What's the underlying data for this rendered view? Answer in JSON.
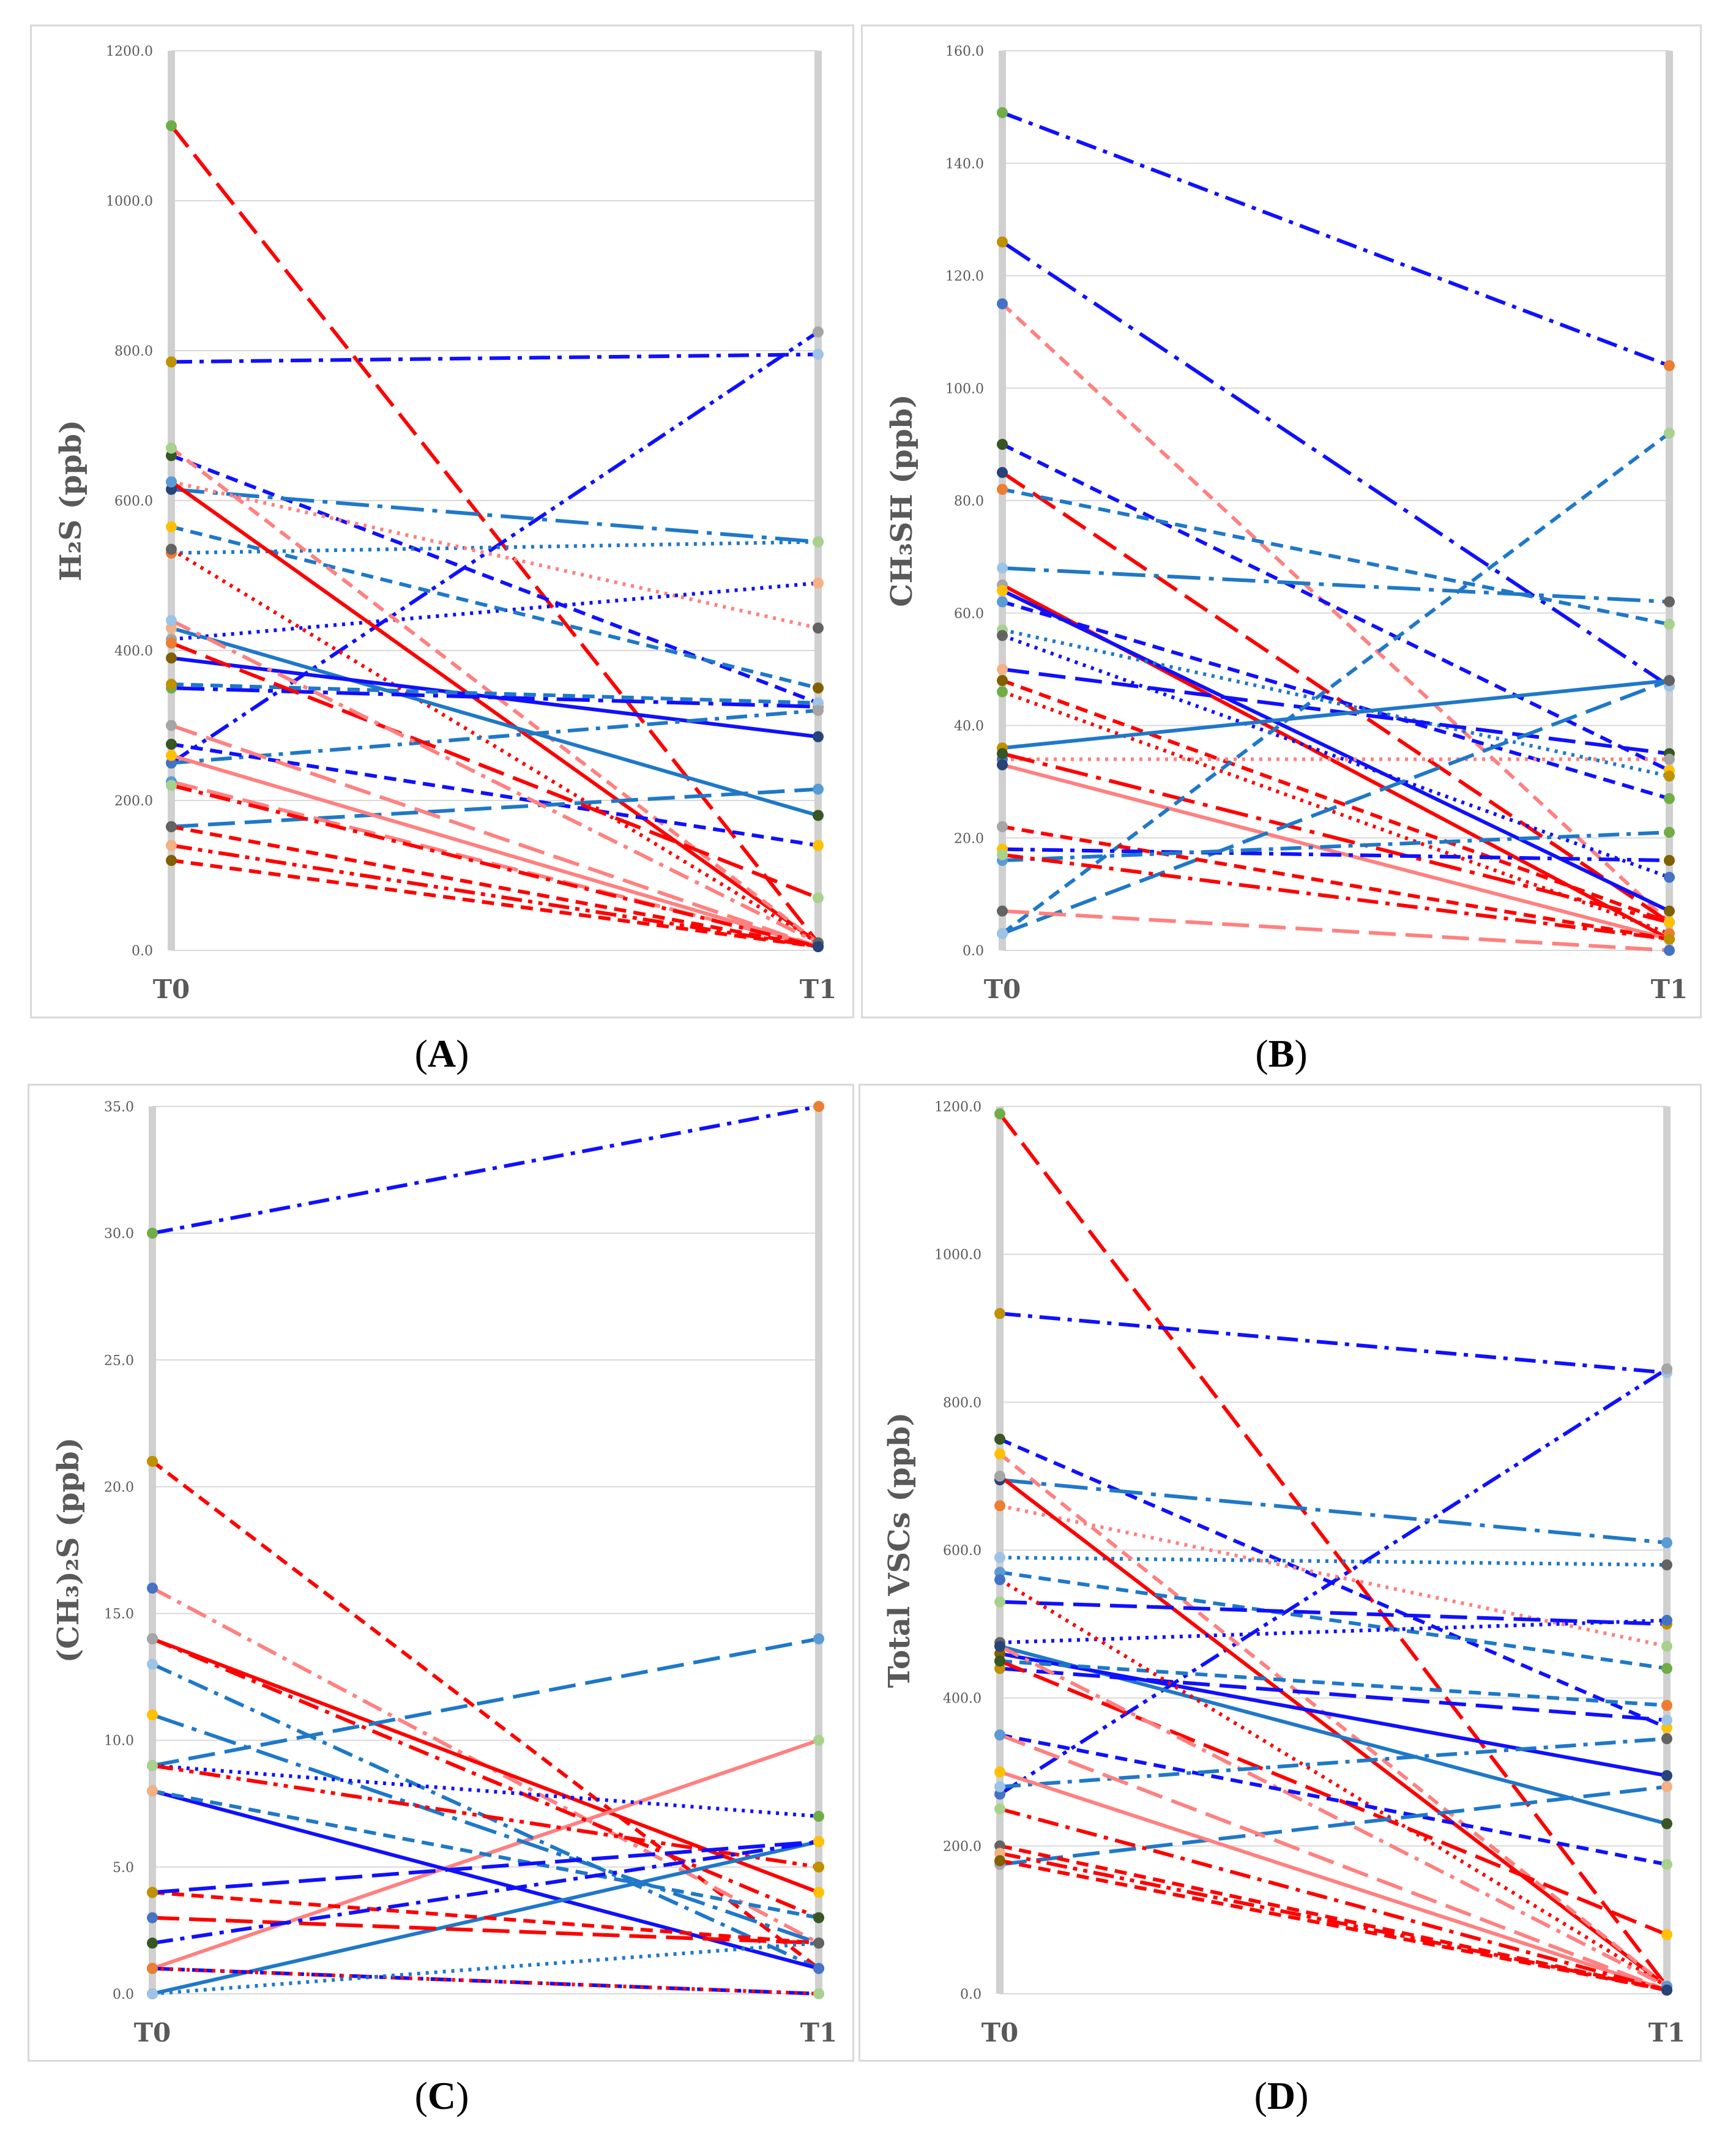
{
  "captions": [
    "A",
    "B",
    "C",
    "D"
  ],
  "x_categories": [
    "T0",
    "T1"
  ],
  "colors": {
    "red": "#ff0000",
    "salmon": "#ff8080",
    "blue": "#1010ff",
    "steel": "#1f78c8",
    "grid": "#d9d9d9",
    "axis": "#d0d0d0",
    "text": "#595959"
  },
  "marker_palette": [
    "#70ad47",
    "#bf9000",
    "#4472c4",
    "#375623",
    "#264478",
    "#ed7d31",
    "#9dc3e6",
    "#a5a5a5",
    "#ffc000",
    "#5b9bd5",
    "#a9d18e",
    "#636363",
    "#f4b183",
    "#806000"
  ],
  "chart_data": [
    {
      "type": "line",
      "title": "",
      "xlabel": "",
      "ylabel": "H₂S (ppb)",
      "ylim": [
        0,
        1200
      ],
      "yticks": [
        "0.0",
        "200.0",
        "400.0",
        "600.0",
        "800.0",
        "1000.0",
        "1200.0"
      ],
      "categories": [
        "T0",
        "T1"
      ],
      "grid": true,
      "series": [
        {
          "c": "red",
          "d": "longdash",
          "v": [
            1100,
            10
          ]
        },
        {
          "c": "blue",
          "d": "dashdot",
          "v": [
            785,
            795
          ]
        },
        {
          "c": "blue",
          "d": "dashdotdot",
          "v": [
            250,
            825
          ]
        },
        {
          "c": "blue",
          "d": "dash",
          "v": [
            660,
            330
          ]
        },
        {
          "c": "steel",
          "d": "longdashdot",
          "v": [
            615,
            545
          ]
        },
        {
          "c": "steel",
          "d": "dotted",
          "v": [
            530,
            545
          ]
        },
        {
          "c": "salmon",
          "d": "dotted",
          "v": [
            625,
            430
          ]
        },
        {
          "c": "blue",
          "d": "dotted",
          "v": [
            415,
            490
          ]
        },
        {
          "c": "steel",
          "d": "dash",
          "v": [
            565,
            350
          ]
        },
        {
          "c": "red",
          "d": "solid",
          "v": [
            625,
            10
          ]
        },
        {
          "c": "salmon",
          "d": "dash",
          "v": [
            670,
            10
          ]
        },
        {
          "c": "red",
          "d": "dotted",
          "v": [
            535,
            10
          ]
        },
        {
          "c": "steel",
          "d": "solid",
          "v": [
            430,
            180
          ]
        },
        {
          "c": "blue",
          "d": "solid",
          "v": [
            390,
            285
          ]
        },
        {
          "c": "blue",
          "d": "longdashdot",
          "v": [
            350,
            325
          ]
        },
        {
          "c": "steel",
          "d": "dash",
          "v": [
            355,
            330
          ]
        },
        {
          "c": "steel",
          "d": "dashdot",
          "v": [
            250,
            320
          ]
        },
        {
          "c": "blue",
          "d": "dash",
          "v": [
            275,
            140
          ]
        },
        {
          "c": "steel",
          "d": "longdash",
          "v": [
            165,
            215
          ]
        },
        {
          "c": "red",
          "d": "longdash",
          "v": [
            410,
            70
          ]
        },
        {
          "c": "salmon",
          "d": "dashdot",
          "v": [
            440,
            10
          ]
        },
        {
          "c": "salmon",
          "d": "longdash",
          "v": [
            300,
            5
          ]
        },
        {
          "c": "salmon",
          "d": "solid",
          "v": [
            260,
            5
          ]
        },
        {
          "c": "salmon",
          "d": "longdash",
          "v": [
            225,
            5
          ]
        },
        {
          "c": "red",
          "d": "dashdot",
          "v": [
            220,
            5
          ]
        },
        {
          "c": "red",
          "d": "dash",
          "v": [
            165,
            5
          ]
        },
        {
          "c": "red",
          "d": "dashdotdot",
          "v": [
            140,
            5
          ]
        },
        {
          "c": "red",
          "d": "dash",
          "v": [
            120,
            5
          ]
        }
      ]
    },
    {
      "type": "line",
      "title": "",
      "xlabel": "",
      "ylabel": "CH₃SH (ppb)",
      "ylim": [
        0,
        160
      ],
      "yticks": [
        "0.0",
        "20.0",
        "40.0",
        "60.0",
        "80.0",
        "100.0",
        "120.0",
        "140.0",
        "160.0"
      ],
      "categories": [
        "T0",
        "T1"
      ],
      "grid": true,
      "series": [
        {
          "c": "blue",
          "d": "dashdot",
          "v": [
            149,
            104
          ]
        },
        {
          "c": "blue",
          "d": "longdashdot",
          "v": [
            126,
            47
          ]
        },
        {
          "c": "salmon",
          "d": "dash",
          "v": [
            115,
            5
          ]
        },
        {
          "c": "blue",
          "d": "dash",
          "v": [
            90,
            32
          ]
        },
        {
          "c": "red",
          "d": "longdash",
          "v": [
            85,
            5
          ]
        },
        {
          "c": "steel",
          "d": "dash",
          "v": [
            82,
            58
          ]
        },
        {
          "c": "steel",
          "d": "longdashdot",
          "v": [
            68,
            62
          ]
        },
        {
          "c": "red",
          "d": "solid",
          "v": [
            65,
            2
          ]
        },
        {
          "c": "blue",
          "d": "solid",
          "v": [
            64,
            7
          ]
        },
        {
          "c": "blue",
          "d": "dash",
          "v": [
            62,
            27
          ]
        },
        {
          "c": "steel",
          "d": "dotted",
          "v": [
            57,
            31
          ]
        },
        {
          "c": "blue",
          "d": "dotted",
          "v": [
            56,
            13
          ]
        },
        {
          "c": "blue",
          "d": "longdash",
          "v": [
            50,
            35
          ]
        },
        {
          "c": "red",
          "d": "dash",
          "v": [
            48,
            5
          ]
        },
        {
          "c": "red",
          "d": "dotted",
          "v": [
            46,
            3
          ]
        },
        {
          "c": "steel",
          "d": "solid",
          "v": [
            36,
            48
          ]
        },
        {
          "c": "salmon",
          "d": "dotted",
          "v": [
            34,
            34
          ]
        },
        {
          "c": "red",
          "d": "longdashdot",
          "v": [
            35,
            5
          ]
        },
        {
          "c": "salmon",
          "d": "solid",
          "v": [
            33,
            2
          ]
        },
        {
          "c": "steel",
          "d": "dash",
          "v": [
            3,
            92
          ]
        },
        {
          "c": "steel",
          "d": "longdash",
          "v": [
            3,
            48
          ]
        },
        {
          "c": "red",
          "d": "dash",
          "v": [
            22,
            2
          ]
        },
        {
          "c": "blue",
          "d": "dashdot",
          "v": [
            18,
            16
          ]
        },
        {
          "c": "steel",
          "d": "dashdot",
          "v": [
            16,
            21
          ]
        },
        {
          "c": "red",
          "d": "dashdot",
          "v": [
            17,
            2
          ]
        },
        {
          "c": "salmon",
          "d": "longdash",
          "v": [
            7,
            0
          ]
        }
      ]
    },
    {
      "type": "line",
      "title": "",
      "xlabel": "",
      "ylabel": "(CH₃)₂S (ppb)",
      "ylim": [
        0,
        35
      ],
      "yticks": [
        "0.0",
        "5.0",
        "10.0",
        "15.0",
        "20.0",
        "25.0",
        "30.0",
        "35.0"
      ],
      "categories": [
        "T0",
        "T1"
      ],
      "grid": true,
      "series": [
        {
          "c": "blue",
          "d": "dashdot",
          "v": [
            30,
            35
          ]
        },
        {
          "c": "red",
          "d": "dash",
          "v": [
            21,
            1
          ]
        },
        {
          "c": "salmon",
          "d": "dashdot",
          "v": [
            16,
            2
          ]
        },
        {
          "c": "red",
          "d": "solid",
          "v": [
            14,
            4
          ]
        },
        {
          "c": "steel",
          "d": "longdash",
          "v": [
            9,
            14
          ]
        },
        {
          "c": "salmon",
          "d": "solid",
          "v": [
            1,
            10
          ]
        },
        {
          "c": "steel",
          "d": "dashdot",
          "v": [
            13,
            1
          ]
        },
        {
          "c": "red",
          "d": "dashdot",
          "v": [
            14,
            3
          ]
        },
        {
          "c": "steel",
          "d": "longdashdot",
          "v": [
            11,
            2
          ]
        },
        {
          "c": "blue",
          "d": "dotted",
          "v": [
            9,
            7
          ]
        },
        {
          "c": "red",
          "d": "dashdotdot",
          "v": [
            9,
            5
          ]
        },
        {
          "c": "blue",
          "d": "solid",
          "v": [
            8,
            1
          ]
        },
        {
          "c": "steel",
          "d": "dash",
          "v": [
            8,
            3
          ]
        },
        {
          "c": "steel",
          "d": "solid",
          "v": [
            0,
            6
          ]
        },
        {
          "c": "red",
          "d": "dash",
          "v": [
            4,
            2
          ]
        },
        {
          "c": "blue",
          "d": "longdash",
          "v": [
            4,
            6
          ]
        },
        {
          "c": "red",
          "d": "longdash",
          "v": [
            3,
            2
          ]
        },
        {
          "c": "blue",
          "d": "dashdot",
          "v": [
            2,
            6
          ]
        },
        {
          "c": "blue",
          "d": "dashdot",
          "v": [
            1,
            0
          ]
        },
        {
          "c": "red",
          "d": "dotted",
          "v": [
            1,
            0
          ]
        },
        {
          "c": "steel",
          "d": "dotted",
          "v": [
            0,
            2
          ]
        }
      ]
    },
    {
      "type": "line",
      "title": "",
      "xlabel": "",
      "ylabel": "Total VSCs (ppb)",
      "ylim": [
        0,
        1200
      ],
      "yticks": [
        "0.0",
        "200.0",
        "400.0",
        "600.0",
        "800.0",
        "1000.0",
        "1200.0"
      ],
      "categories": [
        "T0",
        "T1"
      ],
      "grid": true,
      "series": [
        {
          "c": "red",
          "d": "longdash",
          "v": [
            1190,
            10
          ]
        },
        {
          "c": "blue",
          "d": "dashdot",
          "v": [
            920,
            840
          ]
        },
        {
          "c": "blue",
          "d": "dashdotdot",
          "v": [
            270,
            845
          ]
        },
        {
          "c": "blue",
          "d": "dash",
          "v": [
            750,
            360
          ]
        },
        {
          "c": "steel",
          "d": "longdashdot",
          "v": [
            695,
            610
          ]
        },
        {
          "c": "salmon",
          "d": "dotted",
          "v": [
            660,
            470
          ]
        },
        {
          "c": "steel",
          "d": "dotted",
          "v": [
            590,
            580
          ]
        },
        {
          "c": "red",
          "d": "solid",
          "v": [
            700,
            10
          ]
        },
        {
          "c": "salmon",
          "d": "dash",
          "v": [
            730,
            10
          ]
        },
        {
          "c": "steel",
          "d": "dash",
          "v": [
            570,
            440
          ]
        },
        {
          "c": "blue",
          "d": "longdash",
          "v": [
            530,
            500
          ]
        },
        {
          "c": "blue",
          "d": "dotted",
          "v": [
            475,
            505
          ]
        },
        {
          "c": "steel",
          "d": "solid",
          "v": [
            470,
            230
          ]
        },
        {
          "c": "blue",
          "d": "solid",
          "v": [
            460,
            295
          ]
        },
        {
          "c": "steel",
          "d": "dash",
          "v": [
            450,
            390
          ]
        },
        {
          "c": "blue",
          "d": "longdash",
          "v": [
            440,
            370
          ]
        },
        {
          "c": "red",
          "d": "dotted",
          "v": [
            560,
            10
          ]
        },
        {
          "c": "red",
          "d": "longdash",
          "v": [
            450,
            80
          ]
        },
        {
          "c": "salmon",
          "d": "dashdot",
          "v": [
            470,
            10
          ]
        },
        {
          "c": "blue",
          "d": "dash",
          "v": [
            350,
            175
          ]
        },
        {
          "c": "steel",
          "d": "dashdot",
          "v": [
            280,
            345
          ]
        },
        {
          "c": "steel",
          "d": "longdash",
          "v": [
            175,
            280
          ]
        },
        {
          "c": "salmon",
          "d": "solid",
          "v": [
            300,
            5
          ]
        },
        {
          "c": "salmon",
          "d": "longdash",
          "v": [
            350,
            5
          ]
        },
        {
          "c": "red",
          "d": "dashdot",
          "v": [
            250,
            5
          ]
        },
        {
          "c": "red",
          "d": "dash",
          "v": [
            200,
            5
          ]
        },
        {
          "c": "red",
          "d": "dashdotdot",
          "v": [
            190,
            5
          ]
        },
        {
          "c": "red",
          "d": "dash",
          "v": [
            180,
            5
          ]
        }
      ]
    }
  ]
}
